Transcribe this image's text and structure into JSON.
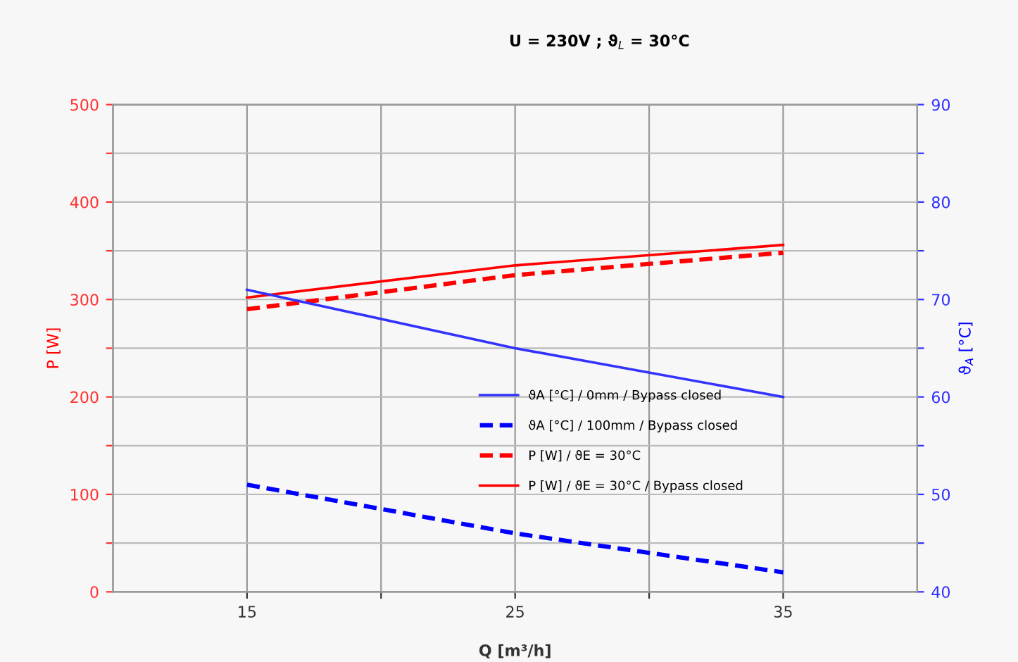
{
  "chart_data": {
    "type": "line",
    "title": "U = 230V ; ϑ$_{L}$ = 30°C",
    "xlabel": "Q [m³/h]",
    "ylabel": "P [W]",
    "y2label": "ϑ$_{A}$ [°C]",
    "x": [
      15,
      25,
      35
    ],
    "series": [
      {
        "name": "ϑA [°C] / 0mm / Bypass closed",
        "color": "#3333ff",
        "values": [
          71,
          65,
          60
        ],
        "axis": "y2",
        "line_style": "solid"
      },
      {
        "name": "ϑA [°C] / 100mm / Bypass closed",
        "color": "#0000ff",
        "values": [
          51,
          46,
          42
        ],
        "axis": "y2",
        "line_style": "dashed"
      },
      {
        "name": "P [W] / ϑE = 30°C",
        "color": "#ff0000",
        "values": [
          290,
          325,
          348
        ],
        "line_style": "dashed"
      },
      {
        "name": "P [W] / ϑE = 30°C / Bypass closed",
        "color": "#ff0000",
        "values": [
          302,
          335,
          356
        ],
        "line_style": "solid"
      }
    ],
    "xlim": [
      10,
      40
    ],
    "xticks": [
      15,
      {
        "value": 20,
        "label": null
      },
      25,
      {
        "value": 30,
        "label": null
      },
      35
    ],
    "ylim": [
      0,
      500
    ],
    "yticks": [
      0,
      {
        "value": 50,
        "label": null
      },
      100,
      {
        "value": 150,
        "label": null
      },
      200,
      {
        "value": 250,
        "label": null
      },
      300,
      {
        "value": 350,
        "label": null
      },
      400,
      {
        "value": 450,
        "label": null
      },
      500
    ],
    "y2lim": [
      40,
      90
    ],
    "y2ticks": [
      40,
      {
        "value": 45,
        "label": null
      },
      50,
      {
        "value": 55,
        "label": null
      },
      60,
      {
        "value": 65,
        "label": null
      },
      70,
      {
        "value": 75,
        "label": null
      },
      80,
      {
        "value": 85,
        "label": null
      },
      90
    ],
    "grid": true,
    "legend": "bottom",
    "marker": "none"
  }
}
